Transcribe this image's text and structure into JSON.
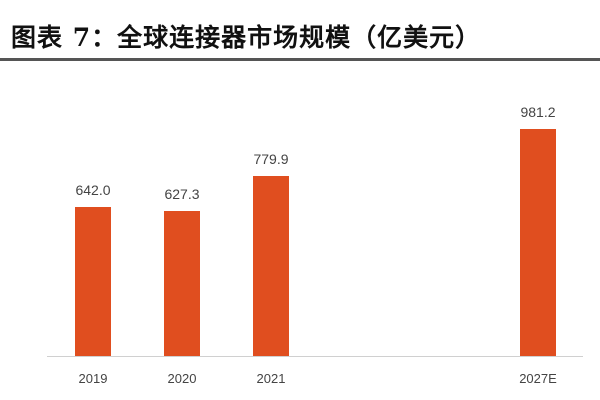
{
  "header": {
    "title": "图表 7：全球连接器市场规模（亿美元）"
  },
  "chart_data": {
    "type": "bar",
    "title": "图表 7：全球连接器市场规模（亿美元）",
    "xlabel": "",
    "ylabel": "亿美元",
    "categories": [
      "2019",
      "2020",
      "2021",
      "2027E"
    ],
    "values": [
      642.0,
      627.3,
      779.9,
      981.2
    ],
    "value_labels": [
      "642.0",
      "627.3",
      "779.9",
      "981.2"
    ],
    "bar_color": "#e04e1f",
    "grid": false,
    "legend": null,
    "ylim": [
      0,
      1000
    ]
  }
}
